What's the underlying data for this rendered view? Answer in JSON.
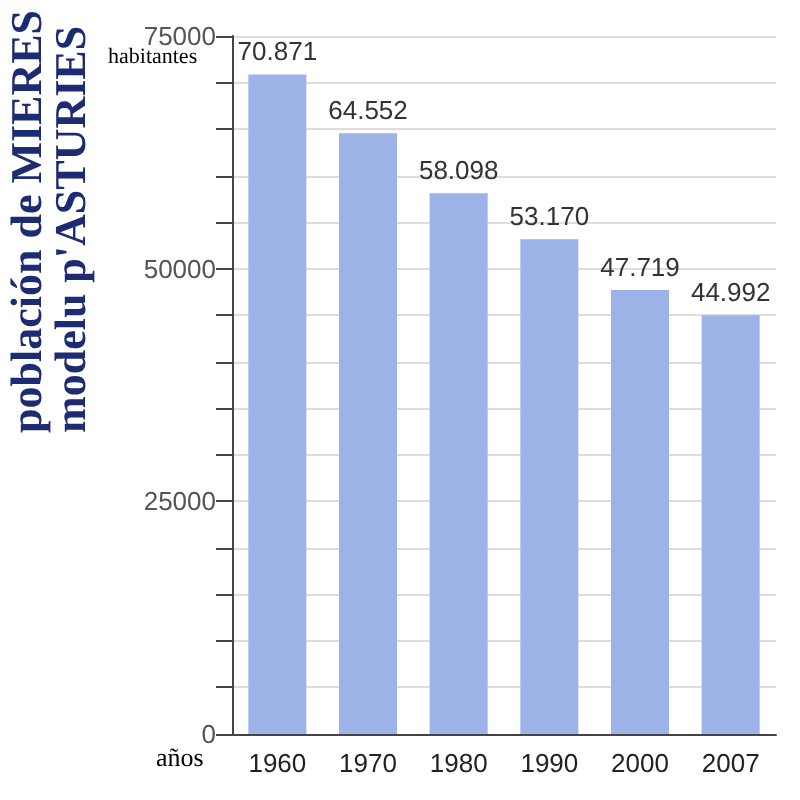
{
  "chart_data": {
    "type": "bar",
    "title": "población de MIERES\nmodelu p'ASTURIES",
    "ylabel": "habitantes",
    "xlabel": "años",
    "categories": [
      "1960",
      "1970",
      "1980",
      "1990",
      "2000",
      "2007"
    ],
    "values": [
      70871,
      64552,
      58098,
      53170,
      47719,
      44992
    ],
    "value_labels": [
      "70.871",
      "64.552",
      "58.098",
      "53.170",
      "47.719",
      "44.992"
    ],
    "color": "#9db3e8",
    "ylim": [
      0,
      75000
    ],
    "yticks": [
      0,
      {
        "value": 5000,
        "label": null
      },
      {
        "value": 10000,
        "label": null
      },
      {
        "value": 15000,
        "label": null
      },
      {
        "value": 20000,
        "label": null
      },
      25000,
      {
        "value": 30000,
        "label": null
      },
      {
        "value": 35000,
        "label": null
      },
      {
        "value": 40000,
        "label": null
      },
      {
        "value": 45000,
        "label": null
      },
      50000,
      {
        "value": 55000,
        "label": null
      },
      {
        "value": 60000,
        "label": null
      },
      {
        "value": 65000,
        "label": null
      },
      {
        "value": 70000,
        "label": null
      },
      75000
    ],
    "grid": "y"
  }
}
